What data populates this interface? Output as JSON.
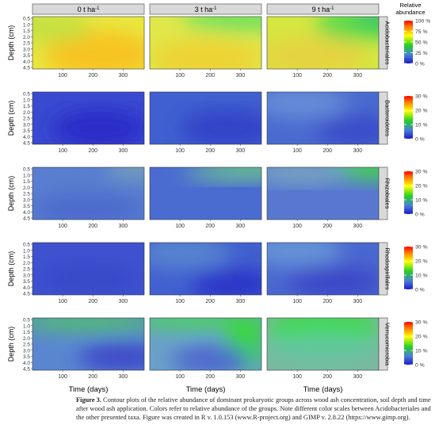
{
  "chart_data": {
    "type": "heatmap",
    "layout": "faceted contour plots (rows: taxa, columns: ash concentration)",
    "column_headers": [
      "0 t ha",
      "3 t ha",
      "9 t ha"
    ],
    "column_header_superscript": "-1",
    "rows": [
      {
        "taxon": "Acidobacteriales",
        "colorbar": {
          "ticks": [
            "100 %",
            "75 %",
            "50 %",
            "25 %",
            "0 %"
          ],
          "max": 100
        }
      },
      {
        "taxon": "Bacteroidetes",
        "colorbar": {
          "ticks": [
            "30 %",
            "20 %",
            "10 %",
            "0 %"
          ],
          "max": 30
        }
      },
      {
        "taxon": "Rhizobiales",
        "colorbar": {
          "ticks": [
            "30 %",
            "20 %",
            "10 %",
            "0 %"
          ],
          "max": 30
        }
      },
      {
        "taxon": "Rhodospirillales",
        "colorbar": {
          "ticks": [
            "30 %",
            "20 %",
            "10 %",
            "0 %"
          ],
          "max": 30
        }
      },
      {
        "taxon": "Verrucomicrobia",
        "colorbar": {
          "ticks": [
            "30 %",
            "20 %",
            "10 %",
            "0 %"
          ],
          "max": 30
        }
      }
    ],
    "ylabel": "Depth (cm)",
    "xlabel": "Time (days)",
    "ylim": [
      4.5,
      0.5
    ],
    "yticks": [
      "0.5",
      "1.0",
      "1.5",
      "2.0",
      "2.5",
      "3.0",
      "3.5",
      "4.0",
      "4.5"
    ],
    "xlim": [
      0,
      370
    ],
    "xticks": [
      "100",
      "200",
      "300"
    ],
    "legend_title": "Relative abundance",
    "grid": false
  },
  "caption": {
    "label": "Figure 3.",
    "text": "Contour plots of the relative abundance of dominant prokaryotic groups across wood ash concentration, soil depth and time after wood ash application. Colors refer to relative abundance of the groups. Note different color scales between Acidobacteriales and the other presented taxa. Figure was created in R v. 1.0.153 (www.R-project.org) and GIMP v. 2.8.22 (https://www.gimp.org)."
  },
  "colors": {
    "strip_bg": "#d9d9d9",
    "scale": [
      "#2d2fd2",
      "#5f8fd0",
      "#20d020",
      "#ffe000",
      "#ff7700",
      "#ff0000"
    ]
  }
}
